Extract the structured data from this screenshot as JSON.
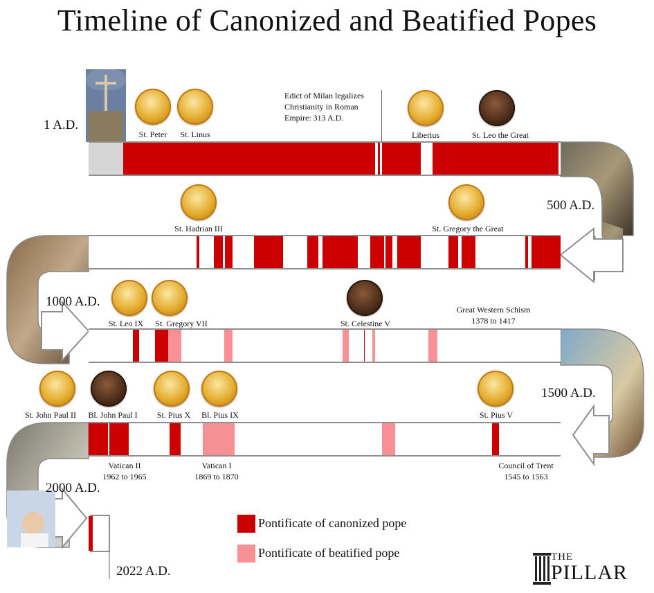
{
  "title": "Timeline of Canonized and Beatified Popes",
  "eras": {
    "e1": "1 A.D.",
    "e500": "500 A.D.",
    "e1000": "1000 A.D.",
    "e1500": "1500 A.D.",
    "e2000": "2000 A.D.",
    "e2022": "2022 A.D."
  },
  "popes": [
    {
      "name": "St. Peter",
      "status": "canonized"
    },
    {
      "name": "St. Linus",
      "status": "canonized"
    },
    {
      "name": "Liberius",
      "status": "canonized"
    },
    {
      "name": "St. Leo the Great",
      "status": "canonized"
    },
    {
      "name": "St. Hadrian III",
      "status": "canonized"
    },
    {
      "name": "St. Gregory the Great",
      "status": "canonized"
    },
    {
      "name": "St. Leo IX",
      "status": "canonized"
    },
    {
      "name": "St. Gregory VII",
      "status": "canonized"
    },
    {
      "name": "St. Celestine V",
      "status": "canonized"
    },
    {
      "name": "St. John Paul II",
      "status": "canonized"
    },
    {
      "name": "Bl. John Paul I",
      "status": "beatified"
    },
    {
      "name": "St. Pius X",
      "status": "canonized"
    },
    {
      "name": "Bl. Pius IX",
      "status": "beatified"
    },
    {
      "name": "St. Pius V",
      "status": "canonized"
    }
  ],
  "annotations": {
    "edict": [
      "Edict of Milan legalizes",
      "Christianity in Roman",
      "Empire: 313 A.D."
    ],
    "schism": [
      "Great Western Schism",
      "1378 to 1417"
    ],
    "vatican2": [
      "Vatican II",
      "1962 to 1965"
    ],
    "vatican1": [
      "Vatican I",
      "1869 to 1870"
    ],
    "trent": [
      "Council of Trent",
      "1545 to 1563"
    ]
  },
  "legend": {
    "canonized": "Pontificate of canonized pope",
    "beatified": "Pontificate of beatified pope"
  },
  "logo": {
    "top": "THE",
    "bottom": "PILLAR"
  },
  "colors": {
    "canonized": "#cc0000",
    "beatified": "#f79195",
    "before_papacy": "#d6d6d6",
    "medal_gold": "#e3ab2c"
  }
}
